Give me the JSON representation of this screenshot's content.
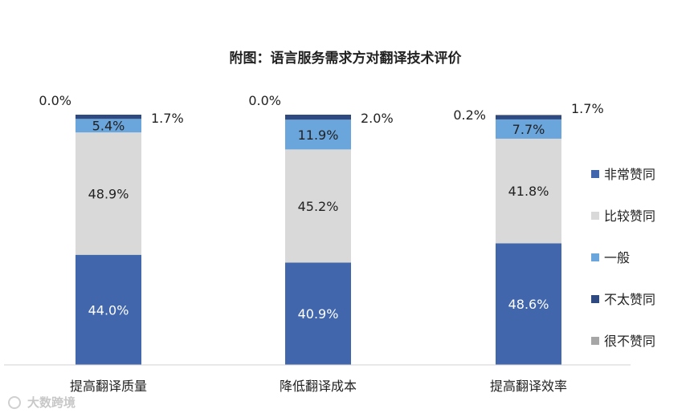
{
  "chart_data": {
    "type": "bar",
    "stacked": true,
    "percent": true,
    "title": "附图：语言服务需求方对翻译技术评价",
    "categories": [
      "提高翻译质量",
      "降低翻译成本",
      "提高翻译效率"
    ],
    "series": [
      {
        "name": "非常赞同",
        "color": "#4166AC",
        "values": [
          44.0,
          40.9,
          48.6
        ],
        "labels": [
          "44.0%",
          "40.9%",
          "48.6%"
        ]
      },
      {
        "name": "比较赞同",
        "color": "#D9D9D9",
        "values": [
          48.9,
          45.2,
          41.8
        ],
        "labels": [
          "48.9%",
          "45.2%",
          "41.8%"
        ]
      },
      {
        "name": "一般",
        "color": "#6AA5DB",
        "values": [
          5.4,
          11.9,
          7.7
        ],
        "labels": [
          "5.4%",
          "11.9%",
          "7.7%"
        ]
      },
      {
        "name": "不太赞同",
        "color": "#2F4A80",
        "values": [
          1.7,
          2.0,
          1.7
        ],
        "labels": [
          "1.7%",
          "2.0%",
          "1.7%"
        ]
      },
      {
        "name": "很不赞同",
        "color": "#A6A6A6",
        "values": [
          0.0,
          0.0,
          0.2
        ],
        "labels": [
          "0.0%",
          "0.0%",
          "0.2%"
        ]
      }
    ],
    "ylim": [
      0,
      100
    ],
    "grid": false,
    "legend": "right"
  },
  "watermark": "大数跨境"
}
